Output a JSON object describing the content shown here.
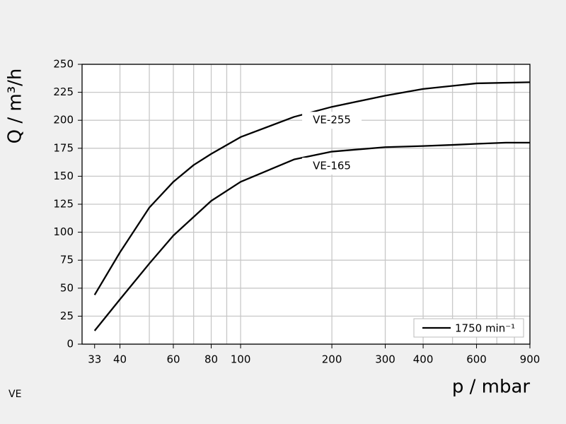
{
  "chart_data": {
    "type": "line",
    "log_x": true,
    "y_label": "Q / m³/h",
    "x_label": "p / mbar",
    "footnote": "VE",
    "xlim": [
      30,
      900
    ],
    "xticks": [
      33,
      40,
      60,
      80,
      100,
      200,
      300,
      400,
      600,
      900
    ],
    "x_gridlines": [
      40,
      50,
      60,
      70,
      80,
      90,
      100,
      200,
      300,
      400,
      500,
      600,
      700,
      800
    ],
    "ylim": [
      0,
      250
    ],
    "yticks": [
      0,
      25,
      50,
      75,
      100,
      125,
      150,
      175,
      200,
      225,
      250
    ],
    "grid": true,
    "legend": {
      "label": "1750 min⁻¹",
      "position": "lower right"
    },
    "series": [
      {
        "name": "VE-255",
        "color": "#000000",
        "x": [
          33,
          40,
          50,
          60,
          70,
          80,
          100,
          150,
          200,
          300,
          400,
          600,
          900
        ],
        "values": [
          44,
          82,
          122,
          145,
          160,
          170,
          185,
          203,
          212,
          222,
          228,
          233,
          234
        ],
        "label_x": 200,
        "label_y": 200
      },
      {
        "name": "VE-165",
        "color": "#000000",
        "x": [
          33,
          40,
          50,
          60,
          80,
          100,
          150,
          200,
          300,
          400,
          500,
          600,
          750,
          900
        ],
        "values": [
          12,
          40,
          72,
          97,
          128,
          145,
          165,
          172,
          176,
          177,
          178,
          179,
          180,
          180
        ],
        "label_x": 200,
        "label_y": 159
      }
    ]
  }
}
